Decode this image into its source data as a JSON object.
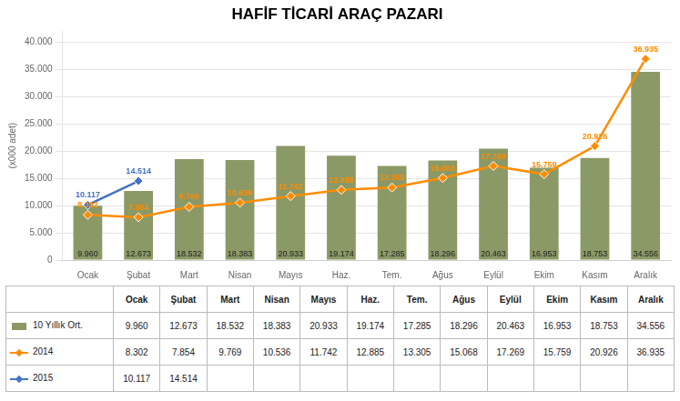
{
  "chart_data": {
    "type": "bar",
    "title": "HAFİF TİCARİ ARAÇ PAZARI",
    "ylabel": "(x000 adet)",
    "categories": [
      "Ocak",
      "Şubat",
      "Mart",
      "Nisan",
      "Mayıs",
      "Haz.",
      "Tem.",
      "Ağus",
      "Eylül",
      "Ekim",
      "Kasım",
      "Aralık"
    ],
    "series": [
      {
        "name": "10 Yıllık Ort.",
        "type": "bar",
        "color": "#8B9966",
        "values": [
          9960,
          12673,
          18532,
          18383,
          20933,
          19174,
          17285,
          18296,
          20463,
          16953,
          18753,
          34556
        ],
        "value_labels": [
          "9.960",
          "12.673",
          "18.532",
          "18.383",
          "20.933",
          "19.174",
          "17.285",
          "18.296",
          "20.463",
          "16.953",
          "18.753",
          "34.556"
        ]
      },
      {
        "name": "2014",
        "type": "line",
        "color": "#FF8C00",
        "marker": "diamond",
        "values": [
          8302,
          7854,
          9769,
          10536,
          11742,
          12885,
          13305,
          15068,
          17269,
          15759,
          20926,
          36935
        ],
        "value_labels": [
          "8.302",
          "7.854",
          "9.769",
          "10.536",
          "11.742",
          "12.885",
          "13.305",
          "15.068",
          "17.269",
          "15.759",
          "20.926",
          "36.935"
        ]
      },
      {
        "name": "2015",
        "type": "line",
        "color": "#4472C4",
        "marker": "diamond",
        "values": [
          10117,
          14514,
          null,
          null,
          null,
          null,
          null,
          null,
          null,
          null,
          null,
          null
        ],
        "value_labels": [
          "10.117",
          "14.514",
          null,
          null,
          null,
          null,
          null,
          null,
          null,
          null,
          null,
          null
        ]
      }
    ],
    "ylim": [
      0,
      42000
    ],
    "yticks": [
      0,
      {
        "value": 5000,
        "label": "5.000"
      },
      {
        "value": 10000,
        "label": "10.000"
      },
      {
        "value": 15000,
        "label": "15.000"
      },
      {
        "value": 20000,
        "label": "20.000"
      },
      {
        "value": 25000,
        "label": "25.000"
      },
      {
        "value": 30000,
        "label": "30.000"
      },
      {
        "value": 35000,
        "label": "35.000"
      },
      {
        "value": 40000,
        "label": "40.000"
      }
    ],
    "grid": true,
    "data_labels": true
  }
}
